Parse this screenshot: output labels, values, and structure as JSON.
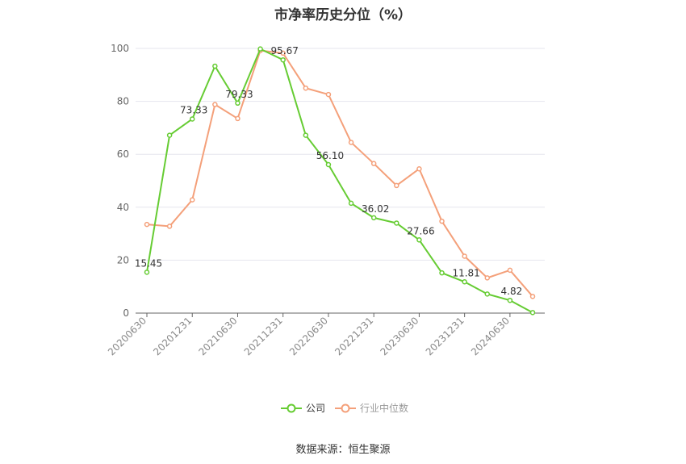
{
  "chart_data": {
    "type": "line",
    "title": "市净率历史分位（%）",
    "xlabel": "",
    "ylabel": "",
    "ylim": [
      0,
      100
    ],
    "yticks": [
      0,
      20,
      40,
      60,
      80,
      100
    ],
    "x": [
      "20200630",
      "20200930",
      "20201231",
      "20210331",
      "20210630",
      "20210930",
      "20211231",
      "20220331",
      "20220630",
      "20220930",
      "20221231",
      "20230331",
      "20230630",
      "20230930",
      "20231231",
      "20240331",
      "20240630",
      "20240930"
    ],
    "xtick_labels": [
      "20200630",
      "20201231",
      "20210630",
      "20211231",
      "20220630",
      "20221231",
      "20230630",
      "20231231",
      "20240630"
    ],
    "series": [
      {
        "name": "公司",
        "color": "#66cc33",
        "values": [
          15.45,
          67.2,
          73.33,
          93.3,
          79.33,
          99.8,
          95.67,
          67.2,
          56.1,
          41.5,
          36.02,
          34.0,
          27.66,
          15.2,
          11.81,
          7.2,
          4.82,
          0.2
        ],
        "labels": {
          "0": "15.45",
          "2": "73.33",
          "4": "79.33",
          "6": "95.67",
          "8": "56.10",
          "10": "36.02",
          "12": "27.66",
          "14": "11.81",
          "16": "4.82"
        }
      },
      {
        "name": "行业中位数",
        "color": "#f4a07a",
        "values": [
          33.5,
          32.8,
          42.8,
          78.8,
          73.5,
          99.2,
          98.2,
          85.0,
          82.6,
          64.5,
          56.5,
          48.2,
          54.5,
          34.7,
          21.5,
          13.3,
          16.2,
          6.3
        ]
      }
    ],
    "grid": true,
    "legend_position": "bottom"
  },
  "source": "数据来源：恒生聚源"
}
